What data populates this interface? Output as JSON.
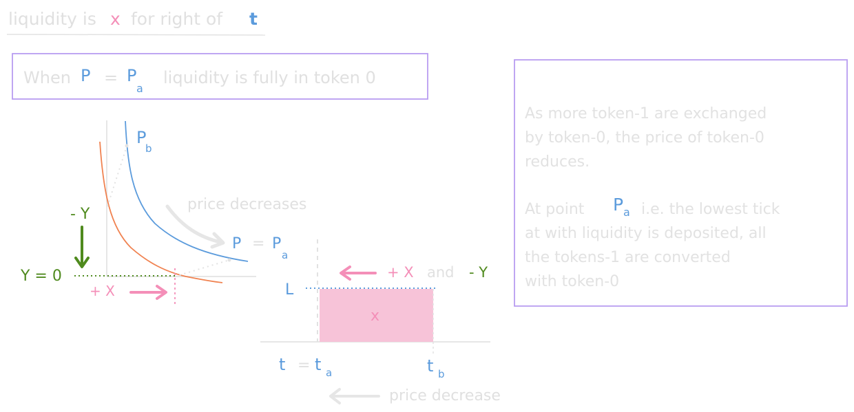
{
  "title": {
    "part1": "liquidity is",
    "x_symbol": "x",
    "part2": "for right of",
    "t_symbol": "t"
  },
  "top_box": {
    "part1": "When",
    "p": "P",
    "eq": "=",
    "pa_base": "P",
    "pa_sub": "a",
    "part2": "liquidity is fully in token 0"
  },
  "side_note": {
    "paragraph1": "As more token-1 are exchanged\nby token-0, the price of token-0\nreduces.",
    "para2_line1_a": "At point",
    "pa_base": "P",
    "pa_sub": "a",
    "para2_line1_b": "i.e. the lowest tick",
    "para2_rest": "at with liquidity is deposited, all\nthe tokens-1 are converted\nwith token-0"
  },
  "left_graph": {
    "pb_base": "P",
    "pb_sub": "b",
    "minus_y": "- Y",
    "price_decreases": "price decreases",
    "p_eq_pa_p": "P",
    "p_eq_pa_eq": "=",
    "p_eq_pa_base": "P",
    "p_eq_pa_sub": "a",
    "y_eq_0": "Y = 0",
    "plus_x": "+ X"
  },
  "right_graph": {
    "plus_x_and_minus_y_a": "+ X",
    "plus_x_and_minus_y_b": "and",
    "plus_x_and_minus_y_c": "- Y",
    "l_label": "L",
    "x_label": "x",
    "t_eq_ta_t": "t",
    "t_eq_ta_eq": "=",
    "ta_base": "t",
    "ta_sub": "a",
    "tb_base": "t",
    "tb_sub": "b",
    "price_decrease": "price decrease"
  },
  "colors": {
    "blue": "#5b9bdc",
    "pink": "#f48fb8",
    "green": "#4f8a1e",
    "orange": "#f08250",
    "purple": "#b89cf0",
    "gray_text": "#e0e0e0",
    "fill_pink": "#f7c3d8"
  }
}
